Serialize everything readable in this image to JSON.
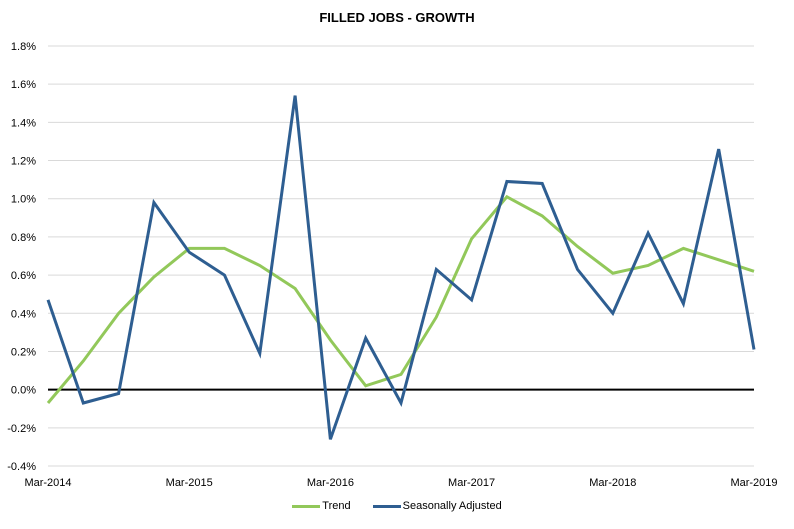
{
  "chart_data": {
    "type": "line",
    "title": "FILLED JOBS - GROWTH",
    "xlabel": "",
    "ylabel": "",
    "ylim": [
      -0.4,
      1.8
    ],
    "yticks": [
      "1.8%",
      "1.6%",
      "1.4%",
      "1.2%",
      "1.0%",
      "0.8%",
      "0.6%",
      "0.4%",
      "0.2%",
      "0.0%",
      "-0.2%",
      "-0.4%"
    ],
    "xticks": [
      "Mar-2014",
      "Mar-2015",
      "Mar-2016",
      "Mar-2017",
      "Mar-2018",
      "Mar-2019"
    ],
    "x": [
      "Mar-2014",
      "Jun-2014",
      "Sep-2014",
      "Dec-2014",
      "Mar-2015",
      "Jun-2015",
      "Sep-2015",
      "Dec-2015",
      "Mar-2016",
      "Jun-2016",
      "Sep-2016",
      "Dec-2016",
      "Mar-2017",
      "Jun-2017",
      "Sep-2017",
      "Dec-2017",
      "Mar-2018",
      "Jun-2018",
      "Sep-2018",
      "Dec-2018",
      "Mar-2019"
    ],
    "grid": true,
    "legend_position": "bottom",
    "series": [
      {
        "name": "Trend",
        "color": "#92C85A",
        "values": [
          -0.07,
          0.15,
          0.4,
          0.59,
          0.74,
          0.74,
          0.65,
          0.53,
          0.26,
          0.02,
          0.08,
          0.38,
          0.79,
          1.01,
          0.91,
          0.75,
          0.61,
          0.65,
          0.74,
          0.68,
          0.62
        ]
      },
      {
        "name": "Seasonally Adjusted",
        "color": "#2E5E91",
        "values": [
          0.47,
          -0.07,
          -0.02,
          0.98,
          0.72,
          0.6,
          0.19,
          1.54,
          -0.26,
          0.27,
          -0.07,
          0.63,
          0.47,
          1.09,
          1.08,
          0.63,
          0.4,
          0.82,
          0.45,
          1.26,
          0.21
        ]
      }
    ]
  }
}
